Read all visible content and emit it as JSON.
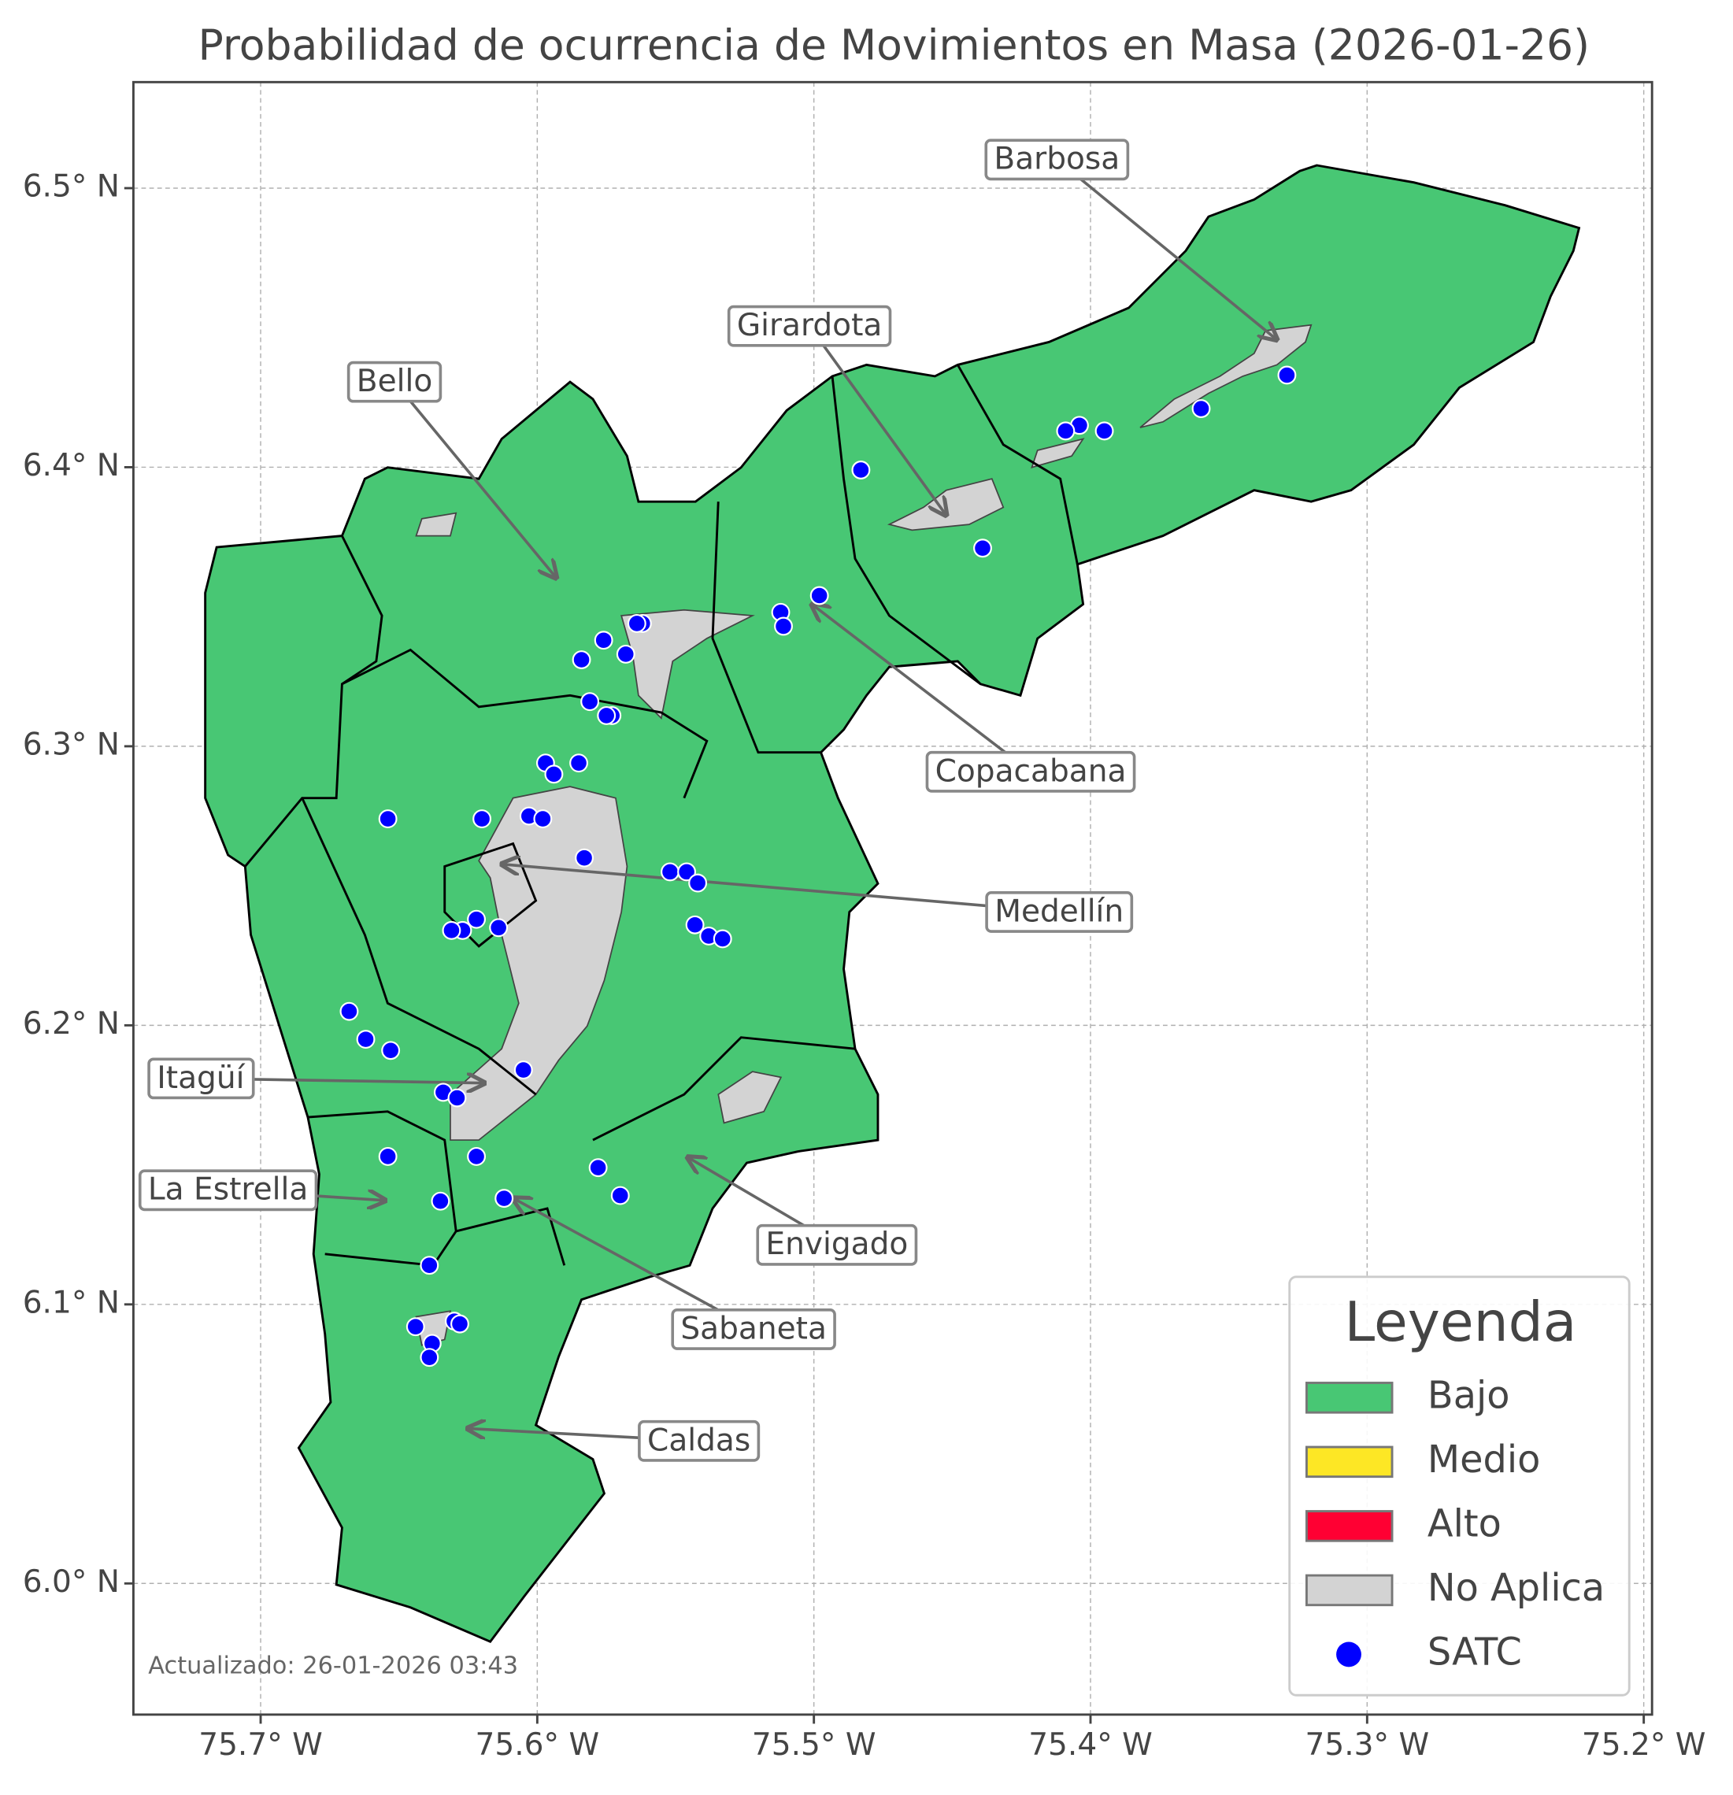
{
  "chart_data": {
    "type": "map",
    "title": "Probabilidad de ocurrencia de Movimientos en Masa (2026-01-26)",
    "xlim": [
      -75.746,
      -75.197
    ],
    "ylim": [
      5.953,
      6.538
    ],
    "xticks": [
      {
        "value": -75.7,
        "label": "75.7° W"
      },
      {
        "value": -75.6,
        "label": "75.6° W"
      },
      {
        "value": -75.5,
        "label": "75.5° W"
      },
      {
        "value": -75.4,
        "label": "75.4° W"
      },
      {
        "value": -75.3,
        "label": "75.3° W"
      },
      {
        "value": -75.2,
        "label": "75.2° W"
      }
    ],
    "yticks": [
      {
        "value": 6.0,
        "label": "6.0° N"
      },
      {
        "value": 6.1,
        "label": "6.1° N"
      },
      {
        "value": 6.2,
        "label": "6.2° N"
      },
      {
        "value": 6.3,
        "label": "6.3° N"
      },
      {
        "value": 6.4,
        "label": "6.4° N"
      },
      {
        "value": 6.5,
        "label": "6.5° N"
      }
    ],
    "grid": true,
    "annotations": [
      "Barbosa",
      "Girardota",
      "Bello",
      "Copacabana",
      "Medellín",
      "Itagüí",
      "La Estrella",
      "Envigado",
      "Sabaneta",
      "Caldas"
    ],
    "satc": {
      "name": "SATC",
      "color": "#0000ff",
      "lon": [
        -75.329,
        -75.36,
        -75.395,
        -75.404,
        -75.409,
        -75.483,
        -75.439,
        -75.498,
        -75.512,
        -75.511,
        -75.562,
        -75.564,
        -75.568,
        -75.576,
        -75.584,
        -75.581,
        -75.573,
        -75.575,
        -75.597,
        -75.594,
        -75.585,
        -75.654,
        -75.62,
        -75.603,
        -75.598,
        -75.583,
        -75.552,
        -75.546,
        -75.542,
        -75.543,
        -75.538,
        -75.533,
        -75.614,
        -75.622,
        -75.627,
        -75.631,
        -75.668,
        -75.662,
        -75.653,
        -75.605,
        -75.634,
        -75.629,
        -75.654,
        -75.622,
        -75.578,
        -75.57,
        -75.635,
        -75.612,
        -75.639,
        -75.644,
        -75.638,
        -75.639,
        -75.63,
        -75.628
      ],
      "lat": [
        6.433,
        6.421,
        6.413,
        6.415,
        6.413,
        6.399,
        6.371,
        6.354,
        6.348,
        6.343,
        6.344,
        6.344,
        6.333,
        6.338,
        6.331,
        6.316,
        6.311,
        6.311,
        6.294,
        6.29,
        6.294,
        6.274,
        6.274,
        6.275,
        6.274,
        6.26,
        6.255,
        6.255,
        6.251,
        6.236,
        6.232,
        6.231,
        6.235,
        6.238,
        6.234,
        6.234,
        6.205,
        6.195,
        6.191,
        6.184,
        6.176,
        6.174,
        6.153,
        6.153,
        6.149,
        6.139,
        6.137,
        6.138,
        6.114,
        6.092,
        6.086,
        6.081,
        6.094,
        6.093
      ]
    },
    "legend": {
      "title": "Leyenda",
      "position": "lower right",
      "items": [
        {
          "label": "Bajo",
          "color": "#48c774"
        },
        {
          "label": "Medio",
          "color": "#fde725"
        },
        {
          "label": "Alto",
          "color": "#ff0033"
        },
        {
          "label": "No Aplica",
          "color": "#d3d3d3"
        }
      ]
    },
    "footer": "Actualizado: 26-01-2026 03:43"
  }
}
